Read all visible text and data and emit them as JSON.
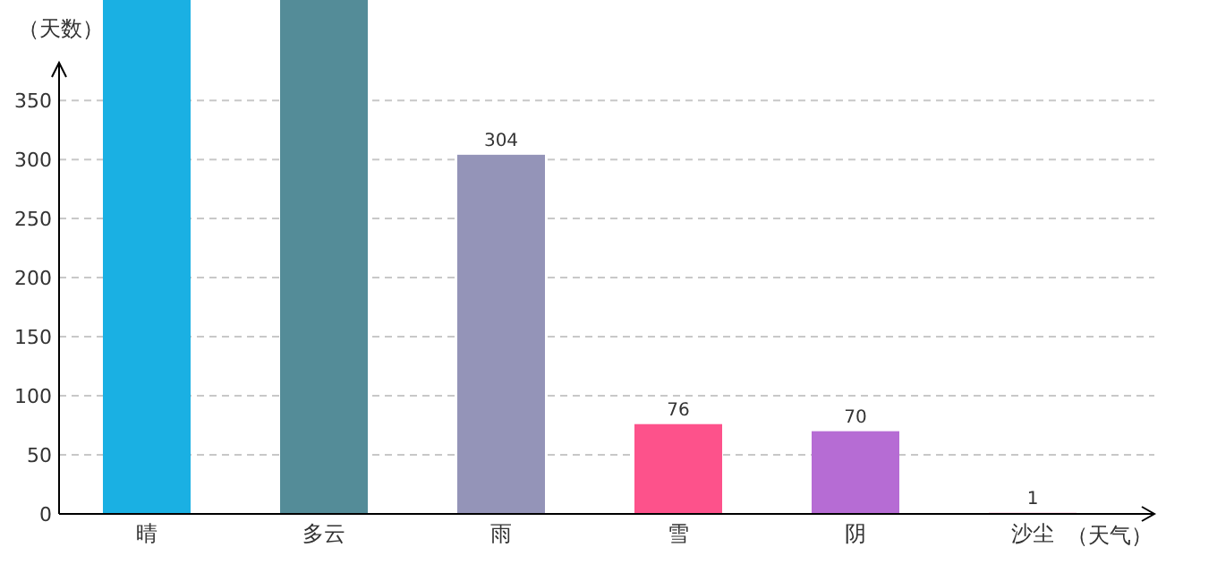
{
  "chart_data": {
    "type": "bar",
    "ylabel": "（天数）",
    "xlabel": "（天气）",
    "categories": [
      "晴",
      "多云",
      "雨",
      "雪",
      "阴",
      "沙尘"
    ],
    "values": [
      435,
      435,
      304,
      76,
      70,
      1
    ],
    "colors": [
      "#1ab0e3",
      "#548c98",
      "#9494b8",
      "#fd528b",
      "#b66cd4",
      "#f4a0c0"
    ],
    "value_labels": [
      null,
      null,
      "304",
      "76",
      "70",
      "1"
    ],
    "ylim": [
      0,
      435
    ],
    "yticks": [
      0,
      50,
      100,
      150,
      200,
      250,
      300,
      350
    ],
    "grid": "y"
  }
}
